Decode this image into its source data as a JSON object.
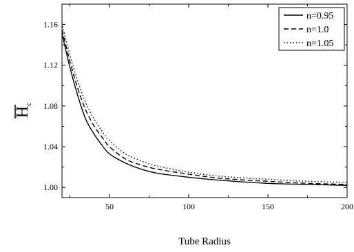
{
  "chart_data": {
    "type": "line",
    "xlabel": "Tube Radius",
    "ylabel": "H",
    "ylabel_subscript": "c",
    "xlim": [
      20,
      200
    ],
    "ylim": [
      0.99,
      1.18
    ],
    "xticks": [
      50,
      100,
      150,
      200
    ],
    "xtick_labels": [
      "50",
      "100",
      "150",
      "200"
    ],
    "yticks": [
      1.0,
      1.04,
      1.08,
      1.12,
      1.16
    ],
    "ytick_labels": [
      "1.00",
      "1.04",
      "1.08",
      "1.12",
      "1.16"
    ],
    "grid": false,
    "legend_position": "top-right",
    "series": [
      {
        "name": "n=0.95",
        "style": "solid",
        "x": [
          20,
          25,
          30,
          35,
          40,
          45,
          50,
          60,
          70,
          80,
          100,
          120,
          150,
          175,
          200
        ],
        "y": [
          1.151,
          1.118,
          1.09,
          1.067,
          1.053,
          1.042,
          1.033,
          1.024,
          1.018,
          1.014,
          1.01,
          1.007,
          1.004,
          1.003,
          1.002
        ]
      },
      {
        "name": "n=1.0",
        "style": "dashed",
        "x": [
          20,
          25,
          30,
          35,
          40,
          45,
          50,
          60,
          70,
          80,
          100,
          120,
          150,
          175,
          200
        ],
        "y": [
          1.155,
          1.124,
          1.097,
          1.076,
          1.061,
          1.05,
          1.04,
          1.028,
          1.022,
          1.018,
          1.013,
          1.009,
          1.006,
          1.004,
          1.003
        ]
      },
      {
        "name": "n=1.05",
        "style": "dotted",
        "x": [
          20,
          25,
          30,
          35,
          40,
          45,
          50,
          60,
          70,
          80,
          100,
          120,
          150,
          175,
          200
        ],
        "y": [
          1.161,
          1.13,
          1.104,
          1.083,
          1.068,
          1.056,
          1.046,
          1.033,
          1.026,
          1.021,
          1.015,
          1.011,
          1.008,
          1.006,
          1.005
        ]
      }
    ]
  }
}
